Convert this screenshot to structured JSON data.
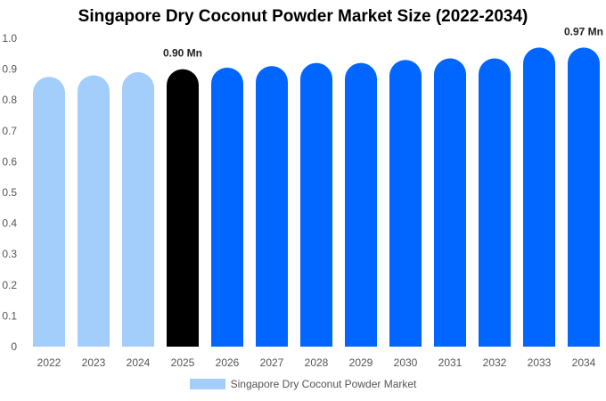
{
  "chart_data": {
    "type": "bar",
    "title": "Singapore Dry Coconut Powder Market Size (2022-2034)",
    "xlabel": "",
    "ylabel": "",
    "categories": [
      "2022",
      "2023",
      "2024",
      "2025",
      "2026",
      "2027",
      "2028",
      "2029",
      "2030",
      "2031",
      "2032",
      "2033",
      "2034"
    ],
    "series": [
      {
        "name": "Singapore Dry Coconut Powder Market",
        "values": [
          0.875,
          0.88,
          0.89,
          0.9,
          0.905,
          0.91,
          0.92,
          0.92,
          0.93,
          0.935,
          0.935,
          0.97,
          0.97
        ]
      }
    ],
    "ylim": [
      0,
      1.0
    ],
    "yticks": [
      "0",
      "0.1",
      "0.2",
      "0.3",
      "0.4",
      "0.5",
      "0.6",
      "0.7",
      "0.8",
      "0.9",
      "1.0"
    ],
    "data_labels": [
      {
        "index": 3,
        "text": "0.90 Mn"
      },
      {
        "index": 12,
        "text": "0.97 Mn"
      }
    ],
    "bar_colors": [
      "#a3cdfa",
      "#a3cdfa",
      "#a3cdfa",
      "#000000",
      "#0066ff",
      "#0066ff",
      "#0066ff",
      "#0066ff",
      "#0066ff",
      "#0066ff",
      "#0066ff",
      "#0066ff",
      "#0066ff"
    ],
    "legend": {
      "position": "bottom",
      "color": "#a3cdfa"
    },
    "grid": false
  }
}
